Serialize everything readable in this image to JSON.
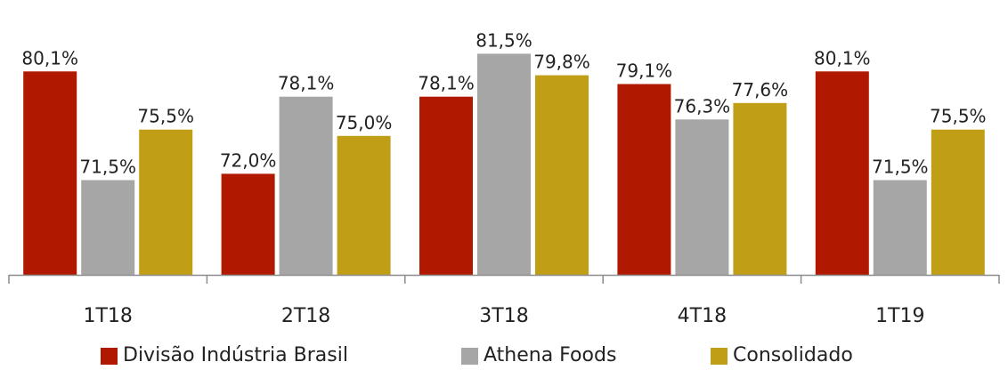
{
  "chart_data": {
    "type": "bar",
    "title": "",
    "xlabel": "",
    "ylabel": "",
    "categories": [
      "1T18",
      "2T18",
      "3T18",
      "4T18",
      "1T19"
    ],
    "series": [
      {
        "name": "Divisão Indústria Brasil",
        "color": "#B01800",
        "values": [
          80.1,
          72.0,
          78.1,
          79.1,
          80.1
        ]
      },
      {
        "name": "Athena Foods",
        "color": "#A6A6A6",
        "values": [
          71.5,
          78.1,
          81.5,
          76.3,
          71.5
        ]
      },
      {
        "name": "Consolidado",
        "color": "#C09F17",
        "values": [
          75.5,
          75.0,
          79.8,
          77.6,
          75.5
        ]
      }
    ],
    "value_labels": [
      [
        "80,1%",
        "72,0%",
        "78,1%",
        "79,1%",
        "80,1%"
      ],
      [
        "71,5%",
        "78,1%",
        "81,5%",
        "76,3%",
        "71,5%"
      ],
      [
        "75,5%",
        "75,0%",
        "79,8%",
        "77,6%",
        "75,5%"
      ]
    ],
    "ylim": [
      64,
      82.2
    ],
    "grid": false,
    "legend_position": "bottom"
  }
}
